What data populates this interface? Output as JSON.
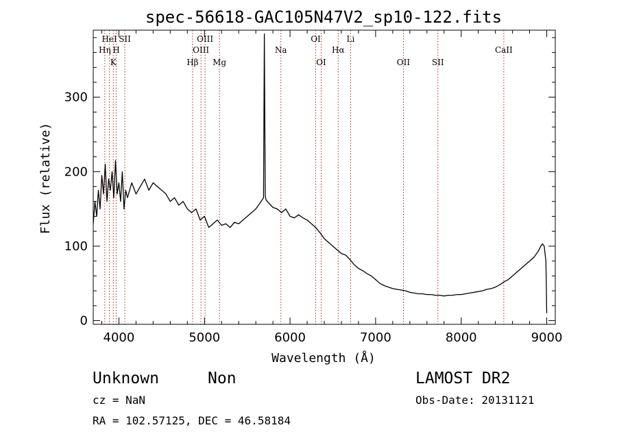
{
  "chart_data": {
    "type": "line",
    "title": "spec-56618-GAC105N47V2_sp10-122.fits",
    "xlabel": "Wavelength (Å)",
    "ylabel": "Flux (relative)",
    "xlim": [
      3700,
      9100
    ],
    "ylim": [
      -5,
      390
    ],
    "xticks": [
      4000,
      5000,
      6000,
      7000,
      8000,
      9000
    ],
    "yticks": [
      0,
      100,
      200,
      300
    ],
    "series": [
      {
        "x": [
          3700,
          3720,
          3740,
          3760,
          3780,
          3800,
          3820,
          3840,
          3860,
          3880,
          3900,
          3920,
          3940,
          3960,
          3980,
          4000,
          4020,
          4040,
          4060,
          4080,
          4100,
          4150,
          4200,
          4250,
          4300,
          4350,
          4400,
          4450,
          4500,
          4550,
          4600,
          4650,
          4700,
          4750,
          4800,
          4850,
          4900,
          4950,
          5000,
          5050,
          5100,
          5150,
          5200,
          5250,
          5300,
          5350,
          5400,
          5450,
          5500,
          5550,
          5600,
          5650,
          5690,
          5700,
          5710,
          5720,
          5750,
          5800,
          5850,
          5900,
          5950,
          6000,
          6050,
          6100,
          6150,
          6200,
          6250,
          6300,
          6350,
          6400,
          6450,
          6500,
          6550,
          6600,
          6650,
          6700,
          6750,
          6800,
          6850,
          6900,
          6950,
          7000,
          7050,
          7100,
          7150,
          7200,
          7250,
          7300,
          7350,
          7400,
          7450,
          7500,
          7550,
          7600,
          7650,
          7700,
          7750,
          7800,
          7850,
          7900,
          7950,
          8000,
          8050,
          8100,
          8150,
          8200,
          8250,
          8300,
          8350,
          8400,
          8450,
          8500,
          8550,
          8600,
          8650,
          8700,
          8750,
          8800,
          8850,
          8900,
          8930,
          8950,
          8970,
          8990,
          9000
        ],
        "y": [
          130,
          160,
          140,
          175,
          150,
          195,
          170,
          210,
          160,
          190,
          175,
          200,
          165,
          215,
          170,
          185,
          160,
          200,
          150,
          175,
          165,
          185,
          170,
          180,
          190,
          175,
          185,
          180,
          175,
          170,
          160,
          165,
          155,
          160,
          150,
          145,
          150,
          135,
          140,
          125,
          130,
          135,
          128,
          130,
          125,
          132,
          130,
          135,
          140,
          145,
          150,
          158,
          165,
          385,
          168,
          162,
          158,
          152,
          150,
          145,
          150,
          140,
          138,
          142,
          138,
          135,
          130,
          125,
          118,
          110,
          105,
          100,
          95,
          90,
          88,
          82,
          75,
          70,
          67,
          63,
          60,
          55,
          50,
          47,
          45,
          43,
          42,
          41,
          40,
          38,
          37,
          36,
          36,
          35,
          35,
          34,
          34,
          33,
          34,
          34,
          35,
          35,
          36,
          37,
          38,
          39,
          40,
          42,
          43,
          45,
          48,
          52,
          55,
          60,
          65,
          70,
          75,
          80,
          85,
          93,
          100,
          103,
          100,
          80,
          10
        ]
      }
    ],
    "lines": [
      {
        "label": "Hη",
        "x": 3835,
        "row": 2
      },
      {
        "label": "HeI",
        "x": 3889,
        "row": 1
      },
      {
        "label": "K",
        "x": 3934,
        "row": 3
      },
      {
        "label": "H",
        "x": 3968,
        "row": 2
      },
      {
        "label": "SII",
        "x": 4069,
        "row": 1
      },
      {
        "label": "Hβ",
        "x": 4861,
        "row": 3
      },
      {
        "label": "OIII",
        "x": 4959,
        "row": 2
      },
      {
        "label": "OIII",
        "x": 5007,
        "row": 1
      },
      {
        "label": "Mg",
        "x": 5175,
        "row": 3
      },
      {
        "label": "Na",
        "x": 5893,
        "row": 2
      },
      {
        "label": "OI",
        "x": 6300,
        "row": 1
      },
      {
        "label": "OI",
        "x": 6364,
        "row": 3
      },
      {
        "label": "Hα",
        "x": 6563,
        "row": 2
      },
      {
        "label": "Li",
        "x": 6708,
        "row": 1
      },
      {
        "label": "OII",
        "x": 7325,
        "row": 3
      },
      {
        "label": "SII",
        "x": 7728,
        "row": 3
      },
      {
        "label": "CaII",
        "x": 8498,
        "row": 2
      }
    ]
  },
  "info": {
    "object_class": "Unknown",
    "subclass": "Non",
    "survey": "LAMOST DR2",
    "redshift": "cz = NaN",
    "obs_date": "Obs-Date: 20131121",
    "coords": "RA = 102.57125, DEC =  46.58184"
  }
}
